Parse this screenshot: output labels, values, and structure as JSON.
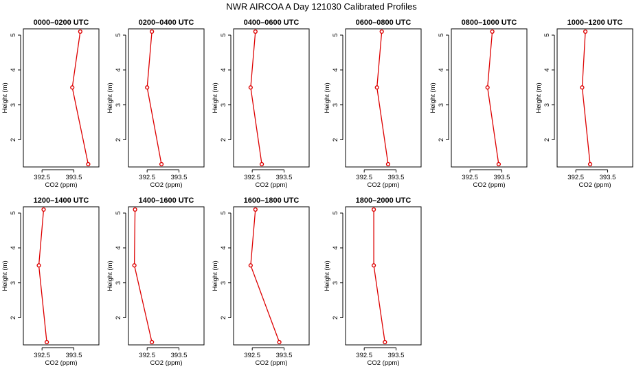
{
  "title": "NWR AIRCOA A  Day 121030  Calibrated Profiles",
  "colors": {
    "series": "#dd0000",
    "axis": "#000000",
    "background": "#ffffff"
  },
  "chart_data": {
    "type": "line",
    "xlabel": "CO2 (ppm)",
    "ylabel": "Height (m)",
    "xlim": [
      392.0,
      394.2
    ],
    "ylim": [
      1.3,
      5.1
    ],
    "xticks": [
      392.5,
      393.5
    ],
    "xtick_labels": [
      "392.5",
      "393.5"
    ],
    "yticks": [
      2,
      3,
      4,
      5
    ],
    "ytick_labels": [
      "2",
      "3",
      "4",
      "5"
    ],
    "panels": [
      {
        "title": "0000–0200 UTC",
        "points": [
          {
            "x": 393.95,
            "y": 1.3
          },
          {
            "x": 393.45,
            "y": 3.5
          },
          {
            "x": 393.7,
            "y": 5.1
          }
        ]
      },
      {
        "title": "0200–0400 UTC",
        "points": [
          {
            "x": 392.95,
            "y": 1.3
          },
          {
            "x": 392.5,
            "y": 3.5
          },
          {
            "x": 392.65,
            "y": 5.1
          }
        ]
      },
      {
        "title": "0400–0600 UTC",
        "points": [
          {
            "x": 392.8,
            "y": 1.3
          },
          {
            "x": 392.45,
            "y": 3.5
          },
          {
            "x": 392.6,
            "y": 5.1
          }
        ]
      },
      {
        "title": "0600–0800 UTC",
        "points": [
          {
            "x": 393.25,
            "y": 1.3
          },
          {
            "x": 392.9,
            "y": 3.5
          },
          {
            "x": 393.05,
            "y": 5.1
          }
        ]
      },
      {
        "title": "0800–1000 UTC",
        "points": [
          {
            "x": 393.4,
            "y": 1.3
          },
          {
            "x": 393.05,
            "y": 3.5
          },
          {
            "x": 393.2,
            "y": 5.1
          }
        ]
      },
      {
        "title": "1000–1200 UTC",
        "points": [
          {
            "x": 392.95,
            "y": 1.3
          },
          {
            "x": 392.7,
            "y": 3.5
          },
          {
            "x": 392.8,
            "y": 5.1
          }
        ]
      },
      {
        "title": "1200–1400 UTC",
        "points": [
          {
            "x": 392.65,
            "y": 1.3
          },
          {
            "x": 392.4,
            "y": 3.5
          },
          {
            "x": 392.55,
            "y": 5.1
          }
        ]
      },
      {
        "title": "1400–1600 UTC",
        "points": [
          {
            "x": 392.65,
            "y": 1.3
          },
          {
            "x": 392.1,
            "y": 3.5
          },
          {
            "x": 392.12,
            "y": 5.1
          }
        ]
      },
      {
        "title": "1600–1800 UTC",
        "points": [
          {
            "x": 393.35,
            "y": 1.3
          },
          {
            "x": 392.45,
            "y": 3.5
          },
          {
            "x": 392.6,
            "y": 5.1
          }
        ]
      },
      {
        "title": "1800–2000 UTC",
        "points": [
          {
            "x": 393.15,
            "y": 1.3
          },
          {
            "x": 392.8,
            "y": 3.5
          },
          {
            "x": 392.8,
            "y": 5.1
          }
        ]
      }
    ]
  }
}
